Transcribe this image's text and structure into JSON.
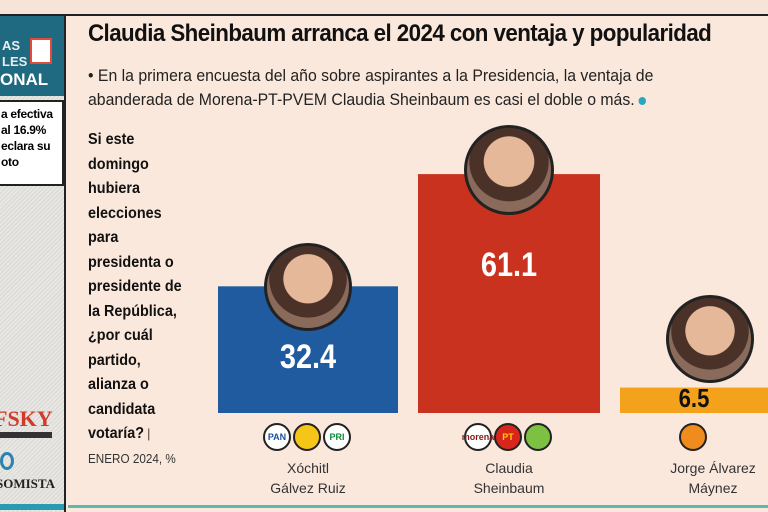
{
  "sidebar": {
    "header_lines": [
      "AS",
      "LES",
      "ONAL"
    ],
    "box_lines": [
      "a efectiva",
      "al 16.9%",
      "eclara su",
      "oto"
    ],
    "logo1": "FSKY",
    "logo2": "SOMISTA"
  },
  "title": "Claudia Sheinbaum arranca el 2024 con ventaja y popularidad",
  "subtitle_lines": [
    "• En la primera encuesta del año sobre aspirantes a la Presidencia, la ventaja de",
    "abanderada de Morena-PT-PVEM Claudia Sheinbaum es casi el doble o más."
  ],
  "question": "Si este domingo hubiera elecciones para presidenta o presidente de la República, ¿por cuál partido, alianza o candidata votaría?",
  "source": " | ENERO 2024, %",
  "chart_data": {
    "type": "bar",
    "categories": [
      "Xóchitl Gálvez Ruiz",
      "Claudia Sheinbaum",
      "Jorge Álvarez Máynez"
    ],
    "category_lines": [
      [
        "Xóchitl",
        "Gálvez Ruiz"
      ],
      [
        "Claudia",
        "Sheinbaum"
      ],
      [
        "Jorge Álvarez",
        "Máynez"
      ]
    ],
    "values": [
      32.4,
      61.1,
      6.5
    ],
    "value_labels": [
      "32.4",
      "61.1",
      "6.5"
    ],
    "colors": [
      "#1f5b9e",
      "#c8321f",
      "#f4a21c"
    ],
    "party_logos": [
      [
        "PAN",
        "PRD",
        "PRI"
      ],
      [
        "morena",
        "PT",
        "PVEM"
      ],
      [
        "MC"
      ]
    ],
    "ylim": [
      0,
      65
    ]
  }
}
